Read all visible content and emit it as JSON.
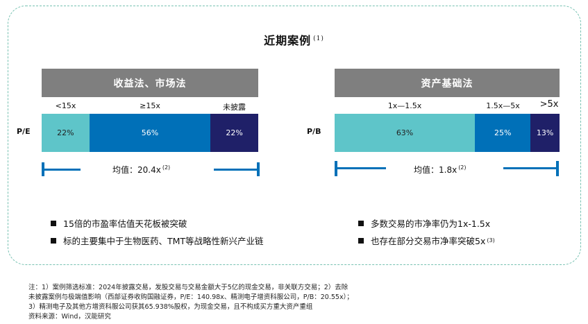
{
  "title": "近期案例",
  "title_note": "(1)",
  "chart_data": [
    {
      "type": "stacked-bar",
      "header": "收益法、市场法",
      "row_label": "P/E",
      "categories": [
        "<15x",
        "≥15x",
        "未披露"
      ],
      "values": [
        22,
        56,
        22
      ],
      "value_labels": [
        "22%",
        "56%",
        "22%"
      ],
      "colors": [
        "#5ec5c9",
        "#0070b8",
        "#1f2068"
      ],
      "label_colors": [
        "#222222",
        "#ffffff",
        "#ffffff"
      ],
      "average_text": "均值：20.4x",
      "average_value": 20.4,
      "average_note": "(2)"
    },
    {
      "type": "stacked-bar",
      "header": "资产基础法",
      "row_label": "P/B",
      "categories": [
        "1x—1.5x",
        "1.5x—5x",
        ">5x"
      ],
      "values": [
        63,
        25,
        13
      ],
      "value_labels": [
        "63%",
        "25%",
        "13%"
      ],
      "colors": [
        "#5ec5c9",
        "#0070b8",
        "#1f2068"
      ],
      "label_colors": [
        "#222222",
        "#ffffff",
        "#ffffff"
      ],
      "average_text": "均值：1.8x",
      "average_value": 1.8,
      "average_note": "(2)"
    }
  ],
  "bullets_left": [
    {
      "text": "15倍的市盈率估值天花板被突破",
      "note": ""
    },
    {
      "text": "标的主要集中于生物医药、TMT等战略性新兴产业链",
      "note": ""
    }
  ],
  "bullets_right": [
    {
      "text": "多数交易的市净率仍为1x-1.5x",
      "note": ""
    },
    {
      "text": "也存在部分交易市净率突破5x",
      "note": "(3)"
    }
  ],
  "notes": {
    "line1": "注：1）案例筛选标准：2024年披露交易，发股交易与交易金额大于5亿的现金交易，非关联方交易；2）去除",
    "line2": "未披露案例与极端值影响（西部证券收购国融证券，P/E：140.98x、精测电子增资科服公司，P/B：20.55x）；",
    "line3": "3）精测电子及其他方增资科服公司获其65.938%股权，为现金交易，且不构成买方重大资产重组",
    "line4": "资料来源：Wind，汉能研究"
  }
}
